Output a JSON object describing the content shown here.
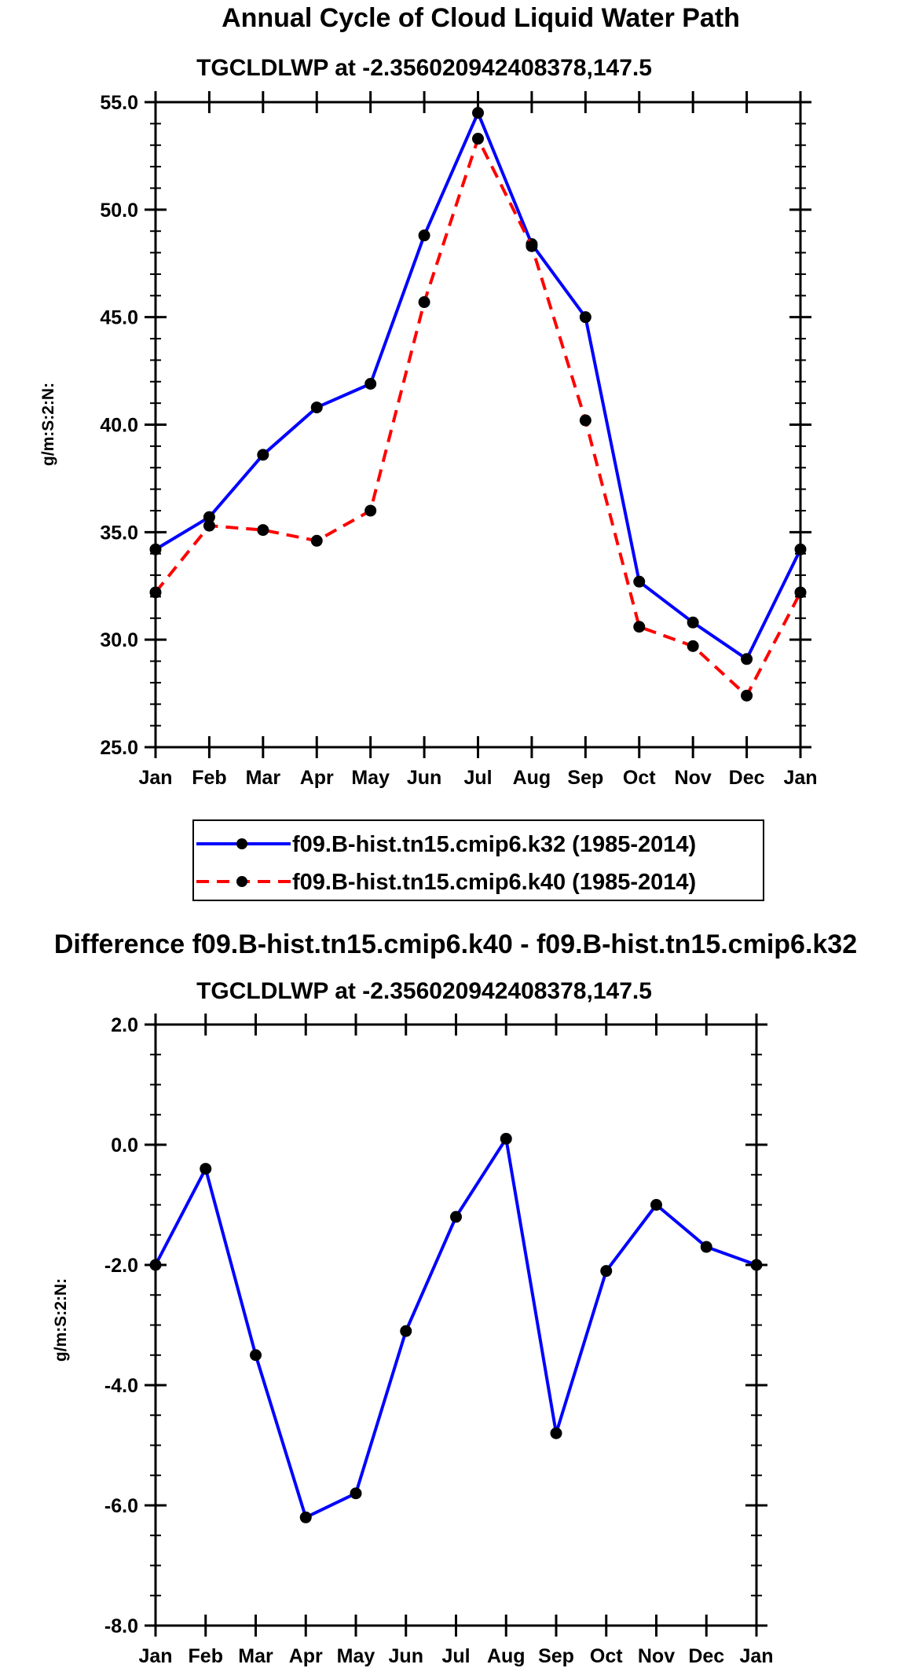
{
  "chart_data": [
    {
      "type": "line",
      "title": "Annual Cycle of Cloud Liquid Water Path",
      "subtitle": "TGCLDLWP at -2.356020942408378,147.5",
      "xlabel": "",
      "ylabel": "g/m:S:2:N:",
      "ylim": [
        25.0,
        55.0
      ],
      "yticks": [
        "25.0",
        "30.0",
        "35.0",
        "40.0",
        "45.0",
        "50.0",
        "55.0"
      ],
      "categories": [
        "Jan",
        "Feb",
        "Mar",
        "Apr",
        "May",
        "Jun",
        "Jul",
        "Aug",
        "Sep",
        "Oct",
        "Nov",
        "Dec",
        "Jan"
      ],
      "series": [
        {
          "name": "f09.B-hist.tn15.cmip6.k32 (1985-2014)",
          "color": "#0000ff",
          "dash": "solid",
          "values": [
            34.2,
            35.7,
            38.6,
            40.8,
            41.9,
            48.8,
            54.5,
            48.4,
            45.0,
            32.7,
            30.8,
            29.1,
            34.2
          ]
        },
        {
          "name": "f09.B-hist.tn15.cmip6.k40 (1985-2014)",
          "color": "#ff0000",
          "dash": "dashed",
          "values": [
            32.2,
            35.3,
            35.1,
            34.6,
            36.0,
            45.7,
            53.3,
            48.3,
            40.2,
            30.6,
            29.7,
            27.4,
            32.2
          ]
        }
      ],
      "legend_position": "below"
    },
    {
      "type": "line",
      "title": "Difference f09.B-hist.tn15.cmip6.k40 - f09.B-hist.tn15.cmip6.k32",
      "subtitle": "TGCLDLWP at -2.356020942408378,147.5",
      "xlabel": "",
      "ylabel": "g/m:S:2:N:",
      "ylim": [
        -8.0,
        2.0
      ],
      "yticks": [
        "-8.0",
        "-6.0",
        "-4.0",
        "-2.0",
        "0.0",
        "2.0"
      ],
      "categories": [
        "Jan",
        "Feb",
        "Mar",
        "Apr",
        "May",
        "Jun",
        "Jul",
        "Aug",
        "Sep",
        "Oct",
        "Nov",
        "Dec",
        "Jan"
      ],
      "series": [
        {
          "name": "Difference",
          "color": "#0000ff",
          "dash": "solid",
          "values": [
            -2.0,
            -0.4,
            -3.5,
            -6.2,
            -5.8,
            -3.1,
            -1.2,
            0.1,
            -4.8,
            -2.1,
            -1.0,
            -1.7,
            -2.0
          ]
        }
      ]
    }
  ]
}
